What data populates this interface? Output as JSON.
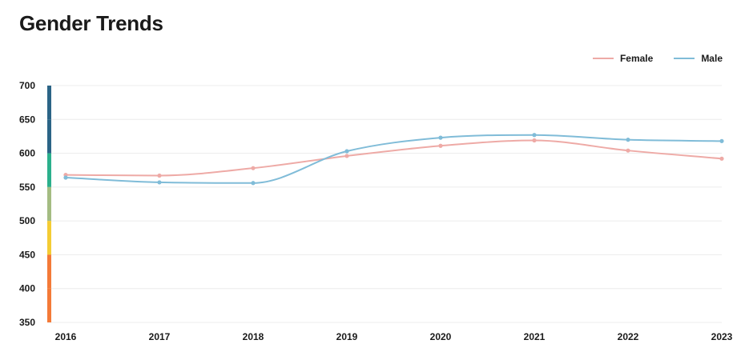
{
  "chart_data": {
    "type": "line",
    "title": "Gender Trends",
    "xlabel": "",
    "ylabel": "",
    "x": [
      "2016",
      "2017",
      "2018",
      "2019",
      "2020",
      "2021",
      "2022",
      "2023"
    ],
    "ylim": [
      350,
      700
    ],
    "yticks": [
      700,
      650,
      600,
      550,
      500,
      450,
      400,
      350
    ],
    "grid": true,
    "legend_position": "top-right",
    "series": [
      {
        "name": "Female",
        "color": "#eeaaa6",
        "values": [
          568,
          567,
          578,
          596,
          611,
          619,
          604,
          592
        ]
      },
      {
        "name": "Male",
        "color": "#80bcd8",
        "values": [
          564,
          557,
          556,
          603,
          623,
          627,
          620,
          618
        ]
      }
    ],
    "y_bands": [
      {
        "from": 650,
        "to": 700,
        "color": "#2b6486"
      },
      {
        "from": 600,
        "to": 650,
        "color": "#2b6486"
      },
      {
        "from": 550,
        "to": 600,
        "color": "#2bb08c"
      },
      {
        "from": 500,
        "to": 550,
        "color": "#a4bc82"
      },
      {
        "from": 450,
        "to": 500,
        "color": "#f4cc34"
      },
      {
        "from": 400,
        "to": 450,
        "color": "#f47a38"
      },
      {
        "from": 350,
        "to": 400,
        "color": "#f47a38"
      }
    ]
  }
}
